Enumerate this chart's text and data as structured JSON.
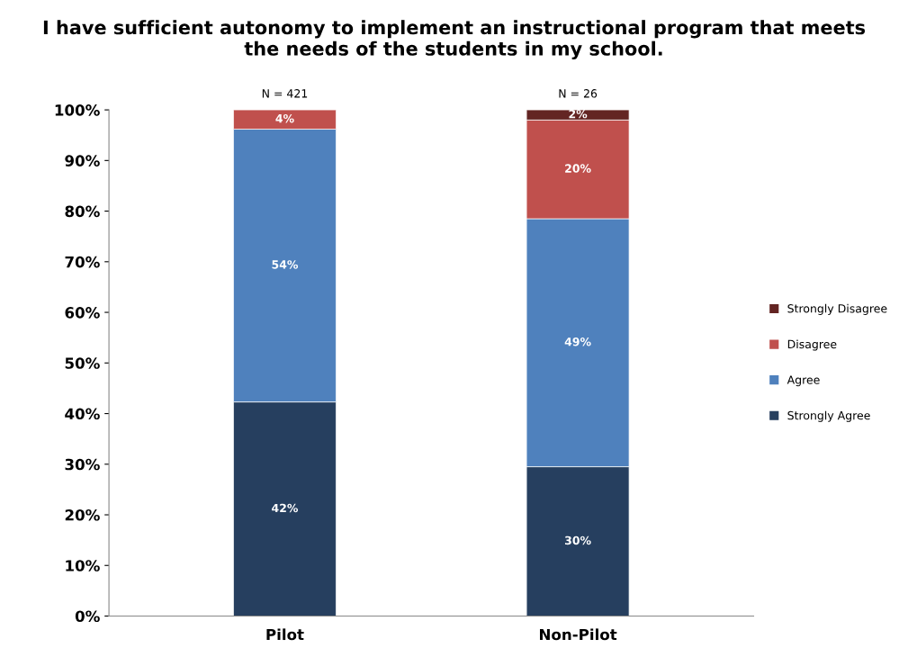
{
  "chart_data": {
    "type": "bar",
    "title": "I have sufficient autonomy to implement an instructional program that meets\nthe needs of the students in my school.",
    "categories": [
      "Pilot",
      "Non-Pilot"
    ],
    "stacked": true,
    "series": [
      {
        "name": "Strongly Agree",
        "color": "#263f5f",
        "values": [
          42.3,
          29.5
        ],
        "value_labels": [
          "42%",
          "30%"
        ]
      },
      {
        "name": "Agree",
        "color": "#4f81bd",
        "values": [
          53.9,
          49
        ],
        "value_labels": [
          "54%",
          "49%"
        ]
      },
      {
        "name": "Disagree",
        "color": "#c0504d",
        "values": [
          3.8,
          19.5
        ],
        "value_labels": [
          "4%",
          "20%"
        ]
      },
      {
        "name": "Strongly Disagree",
        "color": "#632523",
        "values": [
          null,
          2
        ],
        "value_labels": [
          null,
          "2%"
        ]
      }
    ],
    "ylim": [
      0,
      100
    ],
    "yticks": [
      {
        "value": 0,
        "label": "0%"
      },
      {
        "value": 10,
        "label": "10%"
      },
      {
        "value": 20,
        "label": "20%"
      },
      {
        "value": 30,
        "label": "30%"
      },
      {
        "value": 40,
        "label": "40%"
      },
      {
        "value": 50,
        "label": "50%"
      },
      {
        "value": 60,
        "label": "60%"
      },
      {
        "value": 70,
        "label": "70%"
      },
      {
        "value": 80,
        "label": "80%"
      },
      {
        "value": 90,
        "label": "90%"
      },
      {
        "value": 100,
        "label": "100%"
      }
    ],
    "annotations": [
      {
        "text": "N = 421",
        "x": "Pilot",
        "y": 100
      },
      {
        "text": "N = 26",
        "x": "Non-Pilot",
        "y": 100
      }
    ],
    "legend": "right",
    "grid": false
  }
}
